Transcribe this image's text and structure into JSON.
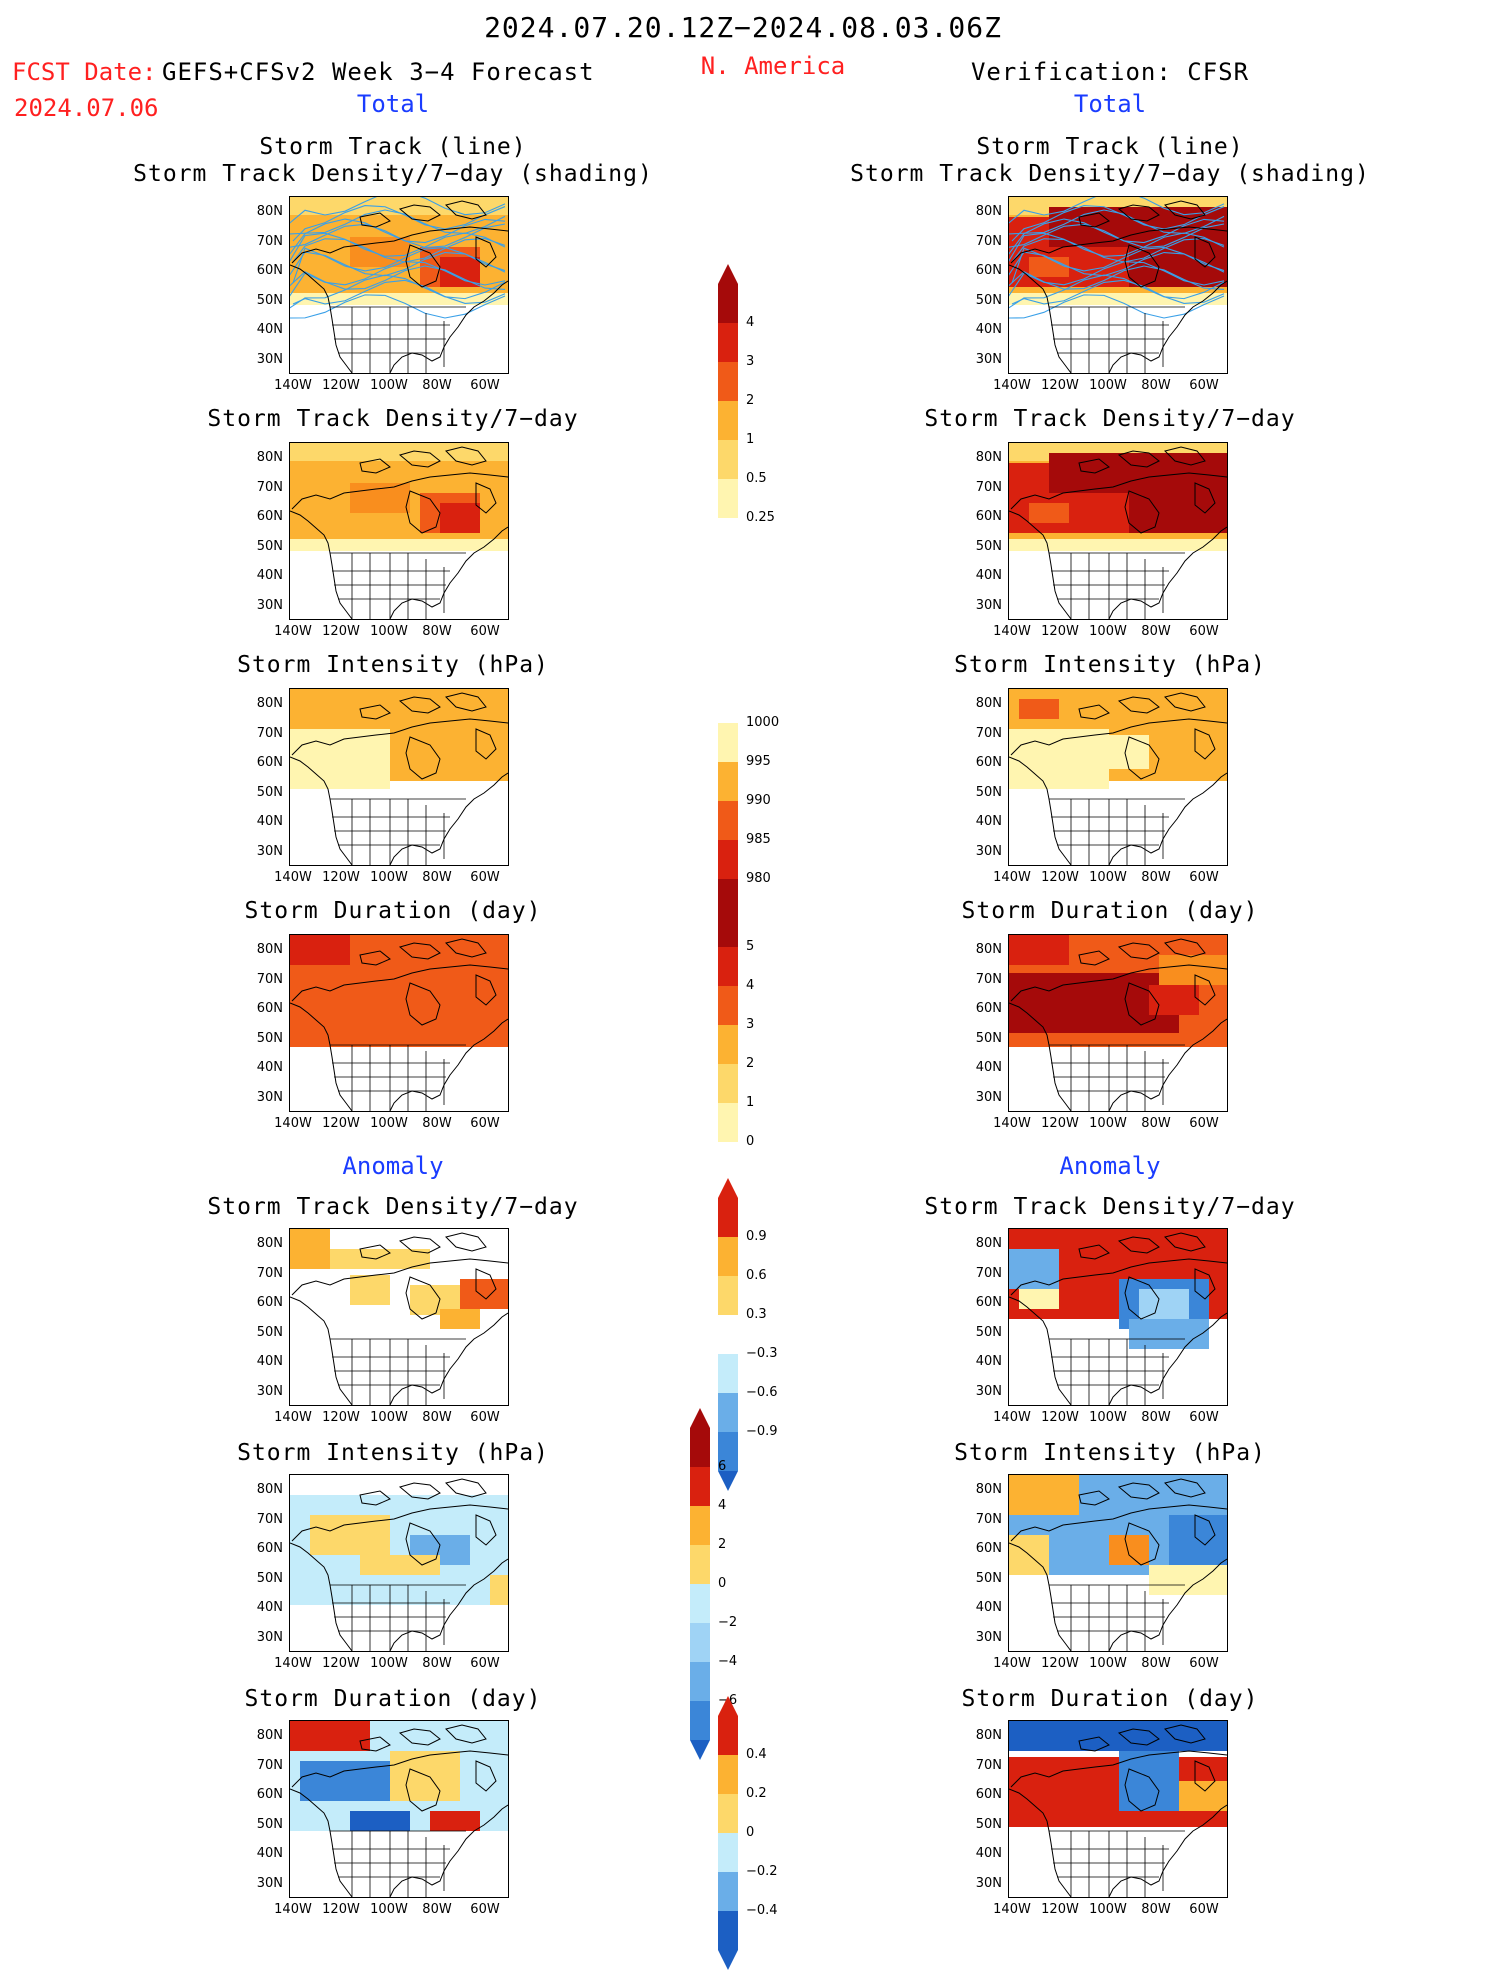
{
  "header": {
    "date_range": "2024.07.20.12Z−2024.08.03.06Z",
    "fcst_label": "FCST Date:",
    "fcst_date": "2024.07.06",
    "forecast_name": "GEFS+CFSv2 Week 3−4 Forecast",
    "region": "N. America",
    "verification": "Verification: CFSR",
    "total_left": "Total",
    "total_right": "Total"
  },
  "sections": {
    "anomaly_left": "Anomaly",
    "anomaly_right": "Anomaly"
  },
  "panel_titles": {
    "track_line": "Storm Track (line)",
    "track_shading": "Storm Track Density/7−day (shading)",
    "density": "Storm Track Density/7−day",
    "intensity": "Storm Intensity (hPa)",
    "duration": "Storm Duration (day)"
  },
  "axes": {
    "lat_ticks": [
      "80N",
      "70N",
      "60N",
      "50N",
      "40N",
      "30N"
    ],
    "lon_ticks": [
      "140W",
      "120W",
      "100W",
      "80W",
      "60W"
    ]
  },
  "colorbars": {
    "density_total": [
      "4",
      "3",
      "2",
      "1",
      "0.5",
      "0.25"
    ],
    "intensity_total": [
      "1000",
      "995",
      "990",
      "985",
      "980"
    ],
    "duration_total": [
      "5",
      "4",
      "3",
      "2",
      "1",
      "0"
    ],
    "density_anom": [
      "0.9",
      "0.6",
      "0.3",
      "−0.3",
      "−0.6",
      "−0.9"
    ],
    "intensity_anom": [
      "6",
      "4",
      "2",
      "0",
      "−2",
      "−4",
      "−6"
    ],
    "duration_anom": [
      "0.4",
      "0.2",
      "0",
      "−0.2",
      "−0.4"
    ]
  },
  "colors": {
    "warm": [
      "#fff5b0",
      "#fdd86a",
      "#fcb232",
      "#f98e1e",
      "#f05a18",
      "#d9210f",
      "#a50a0a"
    ],
    "cool": [
      "#c4ecfa",
      "#9fd3f5",
      "#6aaee8",
      "#3b86d8",
      "#1c5fc3"
    ],
    "track_line": "#3aa0e8",
    "title_blue": "#1a3cff",
    "header_red": "#ff2020"
  }
}
